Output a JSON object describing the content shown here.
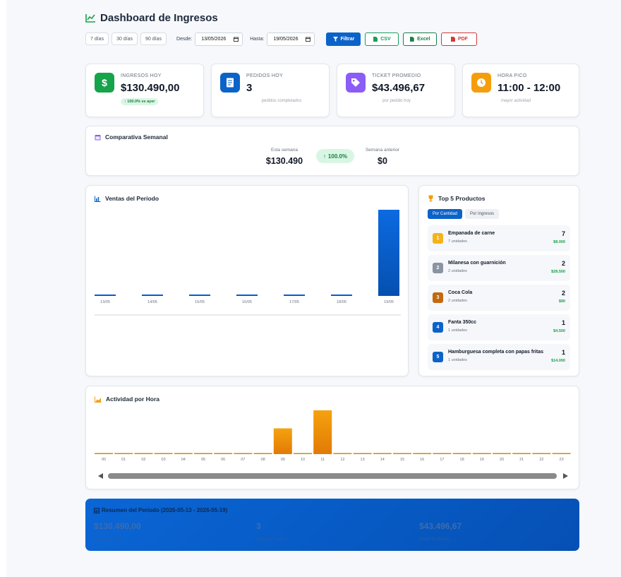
{
  "header": {
    "title": "Dashboard de Ingresos",
    "icon": "chart-line-icon",
    "accent": "#16a34a"
  },
  "toolbar": {
    "ranges": [
      "7 días",
      "30 días",
      "90 días"
    ],
    "desde_label": "Desde:",
    "desde_value": "13/05/2026",
    "hasta_label": "Hasta:",
    "hasta_value": "19/05/2026",
    "filter_label": "Filtrar",
    "csv_label": "CSV",
    "excel_label": "Excel",
    "pdf_label": "PDF"
  },
  "kpis": [
    {
      "label": "INGRESOS HOY",
      "value": "$130.490,00",
      "badge": "↑ 100.0% vs ayer",
      "icon": "dollar-icon",
      "color": "#16a34a"
    },
    {
      "label": "PEDIDOS HOY",
      "value": "3",
      "sub": "pedidos completados",
      "icon": "receipt-icon",
      "color": "#0b63c9"
    },
    {
      "label": "TICKET PROMEDIO",
      "value": "$43.496,67",
      "sub": "por pedido hoy",
      "icon": "tag-icon",
      "color": "#8b5cf6"
    },
    {
      "label": "HORA PICO",
      "value": "11:00 - 12:00",
      "sub": "mayor actividad",
      "icon": "clock-icon",
      "color": "#f59e0b"
    }
  ],
  "weekly": {
    "title": "Comparativa Semanal",
    "this_week_label": "Esta semana",
    "this_week_value": "$130.490",
    "change": "100.0%",
    "last_week_label": "Semana anterior",
    "last_week_value": "$0"
  },
  "sales": {
    "title": "Ventas del Período",
    "chart_data": {
      "type": "bar",
      "categories": [
        "13/05",
        "14/05",
        "15/05",
        "16/05",
        "17/05",
        "18/05",
        "19/05"
      ],
      "values": [
        0,
        0,
        0,
        0,
        0,
        0,
        130490
      ],
      "color": "#0b63c9"
    }
  },
  "top": {
    "title": "Top 5 Productos",
    "tab_quantity": "Por Cantidad",
    "tab_revenue": "Por Ingresos",
    "items": [
      {
        "rank": "1",
        "name": "Empanada de carne",
        "units": "7 unidades",
        "qty": "7",
        "amount": "$8.000",
        "color": "#f5b31a"
      },
      {
        "rank": "2",
        "name": "Milanesa con guarnición",
        "units": "2 unidades",
        "qty": "2",
        "amount": "$28.500",
        "color": "#8a93a3"
      },
      {
        "rank": "3",
        "name": "Coca Cola",
        "units": "2 unidades",
        "qty": "2",
        "amount": "$90",
        "color": "#c2690f"
      },
      {
        "rank": "4",
        "name": "Fanta 350cc",
        "units": "1 unidades",
        "qty": "1",
        "amount": "$4.500",
        "color": "#0b63c9"
      },
      {
        "rank": "5",
        "name": "Hamburguesa completa con papas fritas",
        "units": "1 unidades",
        "qty": "1",
        "amount": "$14.000",
        "color": "#0b63c9"
      }
    ]
  },
  "hourly": {
    "title": "Actividad por Hora",
    "chart_data": {
      "type": "bar",
      "categories": [
        "00",
        "01",
        "02",
        "03",
        "04",
        "05",
        "06",
        "07",
        "08",
        "09",
        "10",
        "11",
        "12",
        "13",
        "14",
        "15",
        "16",
        "17",
        "18",
        "19",
        "20",
        "21",
        "22",
        "23"
      ],
      "values": [
        0,
        0,
        0,
        0,
        0,
        0,
        0,
        0,
        0,
        1,
        0,
        1.7,
        0,
        0,
        0,
        0,
        0,
        0,
        0,
        0,
        0,
        0,
        0,
        0
      ],
      "color": "#f59e0b"
    }
  },
  "summary": {
    "title": "Resumen del Período (2026-05-13 - 2026-05-19)",
    "total_value": "$130.490,00",
    "total_label": "Ingreso Totales",
    "orders_value": "3",
    "orders_label": "Pedidos Totales",
    "ticket_value": "$43.496,67",
    "ticket_label": "Ticket Promedio"
  }
}
